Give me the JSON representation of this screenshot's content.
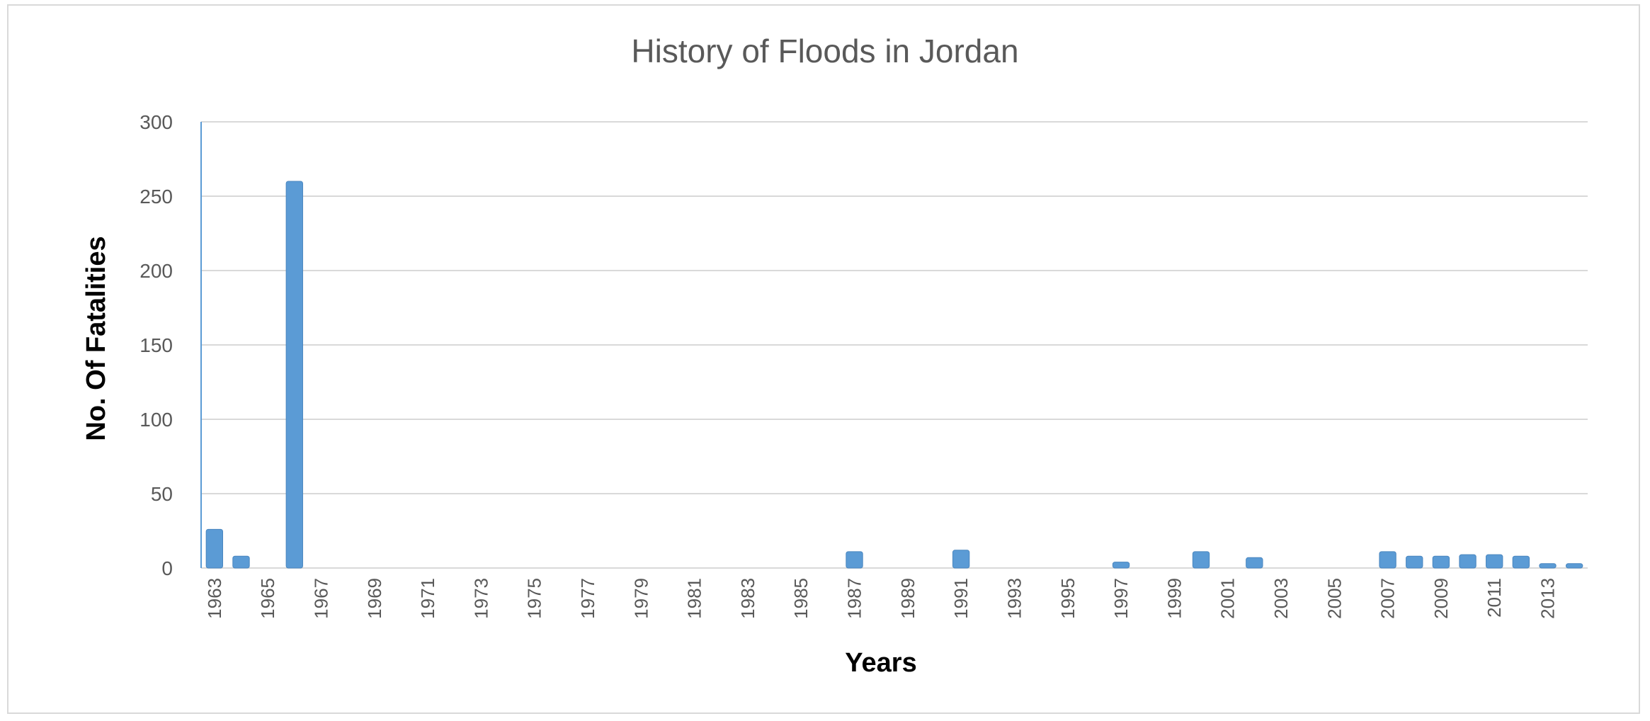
{
  "chart_data": {
    "type": "bar",
    "title": "History of Floods in Jordan",
    "xlabel": "Years",
    "ylabel": "No. Of Fatalities",
    "ylim": [
      0,
      300
    ],
    "yticks": [
      0,
      50,
      100,
      150,
      200,
      250,
      300
    ],
    "grid": true,
    "legend": "none",
    "bar_color": "#5b9bd5",
    "grid_color": "#d9d9d9",
    "categories": [
      1963,
      1964,
      1965,
      1966,
      1967,
      1968,
      1969,
      1970,
      1971,
      1972,
      1973,
      1974,
      1975,
      1976,
      1977,
      1978,
      1979,
      1980,
      1981,
      1982,
      1983,
      1984,
      1985,
      1986,
      1987,
      1988,
      1989,
      1990,
      1991,
      1992,
      1993,
      1994,
      1995,
      1996,
      1997,
      1998,
      1999,
      2000,
      2001,
      2002,
      2003,
      2004,
      2005,
      2006,
      2007,
      2008,
      2009,
      2010,
      2011,
      2012,
      2013,
      2014
    ],
    "xtick_labels": [
      "1963",
      "1965",
      "1967",
      "1969",
      "1971",
      "1973",
      "1975",
      "1977",
      "1979",
      "1981",
      "1983",
      "1985",
      "1987",
      "1989",
      "1991",
      "1993",
      "1995",
      "1997",
      "1999",
      "2001",
      "2003",
      "2005",
      "2007",
      "2009",
      "2011",
      "2013"
    ],
    "values": [
      26,
      8,
      0,
      260,
      0,
      0,
      0,
      0,
      0,
      0,
      0,
      0,
      0,
      0,
      0,
      0,
      0,
      0,
      0,
      0,
      0,
      0,
      0,
      0,
      11,
      0,
      0,
      0,
      12,
      0,
      0,
      0,
      0,
      0,
      4,
      0,
      0,
      11,
      0,
      7,
      0,
      0,
      0,
      0,
      11,
      8,
      8,
      9,
      9,
      8,
      3,
      3
    ]
  }
}
